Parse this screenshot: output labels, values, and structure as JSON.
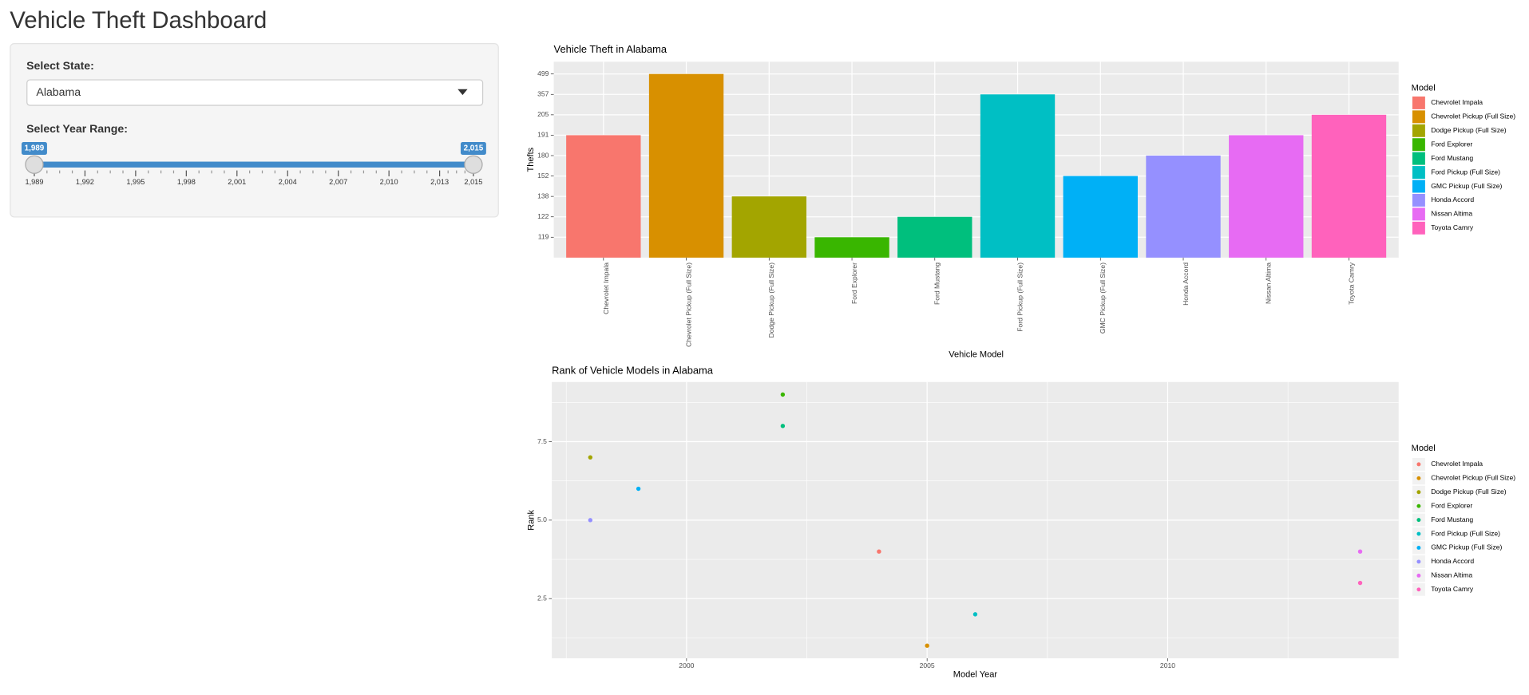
{
  "header": {
    "title": "Vehicle Theft Dashboard"
  },
  "sidebar": {
    "state_label": "Select State:",
    "state_selected": "Alabama",
    "year_label": "Select Year Range:",
    "slider": {
      "min": 1989,
      "max": 2015,
      "from": {
        "value": 1989,
        "label": "1,989"
      },
      "to": {
        "value": 2015,
        "label": "2,015"
      },
      "ticks": [
        {
          "value": 1989,
          "label": "1,989"
        },
        {
          "value": 1992,
          "label": "1,992"
        },
        {
          "value": 1995,
          "label": "1,995"
        },
        {
          "value": 1998,
          "label": "1,998"
        },
        {
          "value": 2001,
          "label": "2,001"
        },
        {
          "value": 2004,
          "label": "2,004"
        },
        {
          "value": 2007,
          "label": "2,007"
        },
        {
          "value": 2010,
          "label": "2,010"
        },
        {
          "value": 2013,
          "label": "2,013"
        },
        {
          "value": 2015,
          "label": "2,015"
        }
      ]
    }
  },
  "chart_data": [
    {
      "type": "bar",
      "title": "Vehicle Theft in Alabama",
      "x_label": "Vehicle Model",
      "y_label": "Thefts",
      "legend_title": "Model",
      "y_discrete": true,
      "categories": [
        "Chevrolet Impala",
        "Chevrolet Pickup (Full Size)",
        "Dodge Pickup (Full Size)",
        "Ford Explorer",
        "Ford Mustang",
        "Ford Pickup (Full Size)",
        "GMC Pickup (Full Size)",
        "Honda Accord",
        "Nissan Altima",
        "Toyota Camry"
      ],
      "values": [
        191,
        499,
        138,
        119,
        122,
        357,
        152,
        180,
        191,
        205
      ],
      "colors": [
        "#F8766D",
        "#D89000",
        "#A3A500",
        "#39B600",
        "#00BF7D",
        "#00BFC4",
        "#00B0F6",
        "#9590FF",
        "#E76BF3",
        "#FF62BC"
      ],
      "yticks": [
        119,
        122,
        138,
        152,
        180,
        191,
        205,
        357,
        499
      ],
      "grid": true
    },
    {
      "type": "scatter",
      "title": "Rank of Vehicle Models in Alabama",
      "x_label": "Model Year",
      "y_label": "Rank",
      "legend_title": "Model",
      "series": [
        {
          "name": "Chevrolet Impala",
          "color": "#F8766D",
          "x": [
            2004
          ],
          "values": [
            4
          ]
        },
        {
          "name": "Chevrolet Pickup (Full Size)",
          "color": "#D89000",
          "x": [
            2005
          ],
          "values": [
            1
          ]
        },
        {
          "name": "Dodge Pickup (Full Size)",
          "color": "#A3A500",
          "x": [
            1998
          ],
          "values": [
            7
          ]
        },
        {
          "name": "Ford Explorer",
          "color": "#39B600",
          "x": [
            2002
          ],
          "values": [
            9
          ]
        },
        {
          "name": "Ford Mustang",
          "color": "#00BF7D",
          "x": [
            2002
          ],
          "values": [
            8
          ]
        },
        {
          "name": "Ford Pickup (Full Size)",
          "color": "#00BFC4",
          "x": [
            2006
          ],
          "values": [
            2
          ]
        },
        {
          "name": "GMC Pickup (Full Size)",
          "color": "#00B0F6",
          "x": [
            1999
          ],
          "values": [
            6
          ]
        },
        {
          "name": "Honda Accord",
          "color": "#9590FF",
          "x": [
            1998
          ],
          "values": [
            5
          ]
        },
        {
          "name": "Nissan Altima",
          "color": "#E76BF3",
          "x": [
            2014
          ],
          "values": [
            4
          ]
        },
        {
          "name": "Toyota Camry",
          "color": "#FF62BC",
          "x": [
            2014
          ],
          "values": [
            3
          ]
        }
      ],
      "xlim": [
        1997.2,
        2014.8
      ],
      "ylim": [
        0.6,
        9.4
      ],
      "xticks": [
        2000,
        2005,
        2010
      ],
      "yticks": [
        2.5,
        {
          "value": 5,
          "label": "5.0"
        },
        7.5
      ],
      "grid": true
    }
  ]
}
